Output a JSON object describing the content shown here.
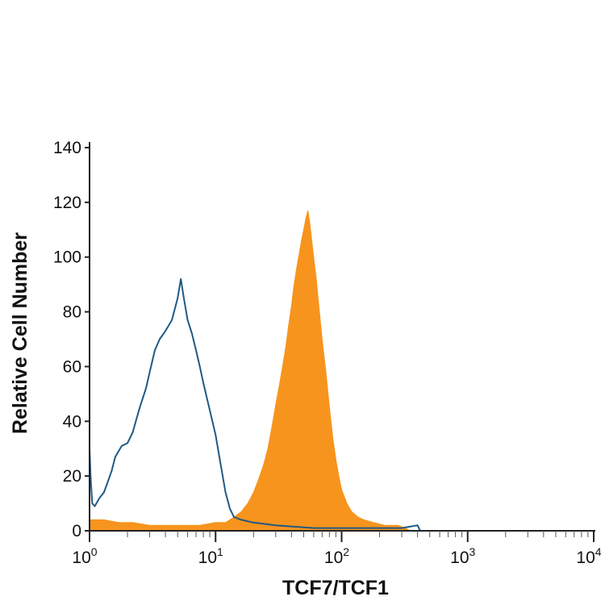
{
  "chart_data": {
    "type": "area",
    "title": "",
    "xlabel": "TCF7/TCF1",
    "ylabel": "Relative Cell Number",
    "xscale": "log",
    "xlim": [
      1,
      10000
    ],
    "ylim": [
      0,
      140
    ],
    "grid": false,
    "legend": "none",
    "y_ticks": [
      "0",
      "20",
      "40",
      "60",
      "80",
      "100",
      "120",
      "140"
    ],
    "x_ticks": [
      {
        "base": "10",
        "exp": "0"
      },
      {
        "base": "10",
        "exp": "1"
      },
      {
        "base": "10",
        "exp": "2"
      },
      {
        "base": "10",
        "exp": "3"
      },
      {
        "base": "10",
        "exp": "4"
      }
    ],
    "series": [
      {
        "style": "filled",
        "color": "#f7941d",
        "points": [
          [
            1.0,
            4
          ],
          [
            1.3,
            4
          ],
          [
            1.7,
            3
          ],
          [
            2.2,
            3
          ],
          [
            3,
            2
          ],
          [
            4,
            2
          ],
          [
            5.5,
            2
          ],
          [
            7.5,
            2
          ],
          [
            10,
            3
          ],
          [
            12,
            3
          ],
          [
            14,
            5
          ],
          [
            16,
            7
          ],
          [
            18,
            10
          ],
          [
            20,
            14
          ],
          [
            22,
            19
          ],
          [
            24,
            24
          ],
          [
            26,
            30
          ],
          [
            28,
            38
          ],
          [
            30,
            46
          ],
          [
            32,
            53
          ],
          [
            34,
            60
          ],
          [
            36,
            67
          ],
          [
            38,
            75
          ],
          [
            40,
            82
          ],
          [
            42,
            90
          ],
          [
            44,
            96
          ],
          [
            46,
            101
          ],
          [
            48,
            106
          ],
          [
            50,
            110
          ],
          [
            52,
            114
          ],
          [
            54,
            117
          ],
          [
            56,
            112
          ],
          [
            58,
            106
          ],
          [
            60,
            100
          ],
          [
            63,
            92
          ],
          [
            66,
            82
          ],
          [
            70,
            70
          ],
          [
            75,
            58
          ],
          [
            80,
            45
          ],
          [
            85,
            34
          ],
          [
            90,
            26
          ],
          [
            95,
            20
          ],
          [
            100,
            15
          ],
          [
            110,
            10
          ],
          [
            120,
            7
          ],
          [
            135,
            5
          ],
          [
            150,
            4
          ],
          [
            180,
            3
          ],
          [
            220,
            2
          ],
          [
            280,
            2
          ],
          [
            320,
            1
          ],
          [
            350,
            0
          ]
        ]
      },
      {
        "style": "outline",
        "color": "#1f5a85",
        "points": [
          [
            1.0,
            30
          ],
          [
            1.02,
            20
          ],
          [
            1.05,
            10
          ],
          [
            1.1,
            9
          ],
          [
            1.2,
            12
          ],
          [
            1.3,
            14
          ],
          [
            1.4,
            18
          ],
          [
            1.5,
            22
          ],
          [
            1.6,
            27
          ],
          [
            1.8,
            31
          ],
          [
            2.0,
            32
          ],
          [
            2.2,
            36
          ],
          [
            2.5,
            45
          ],
          [
            2.8,
            52
          ],
          [
            3.0,
            58
          ],
          [
            3.3,
            66
          ],
          [
            3.6,
            70
          ],
          [
            4.0,
            73
          ],
          [
            4.5,
            77
          ],
          [
            5.0,
            85
          ],
          [
            5.3,
            92
          ],
          [
            5.6,
            85
          ],
          [
            6.0,
            77
          ],
          [
            6.5,
            72
          ],
          [
            7.0,
            66
          ],
          [
            7.5,
            60
          ],
          [
            8.0,
            54
          ],
          [
            9.0,
            44
          ],
          [
            10,
            35
          ],
          [
            11,
            24
          ],
          [
            12,
            14
          ],
          [
            13,
            8
          ],
          [
            14,
            5
          ],
          [
            16,
            4
          ],
          [
            20,
            3
          ],
          [
            30,
            2
          ],
          [
            60,
            1
          ],
          [
            150,
            1
          ],
          [
            300,
            1
          ],
          [
            400,
            2
          ],
          [
            420,
            0
          ],
          [
            1000,
            0
          ],
          [
            10000,
            0
          ]
        ]
      }
    ]
  }
}
